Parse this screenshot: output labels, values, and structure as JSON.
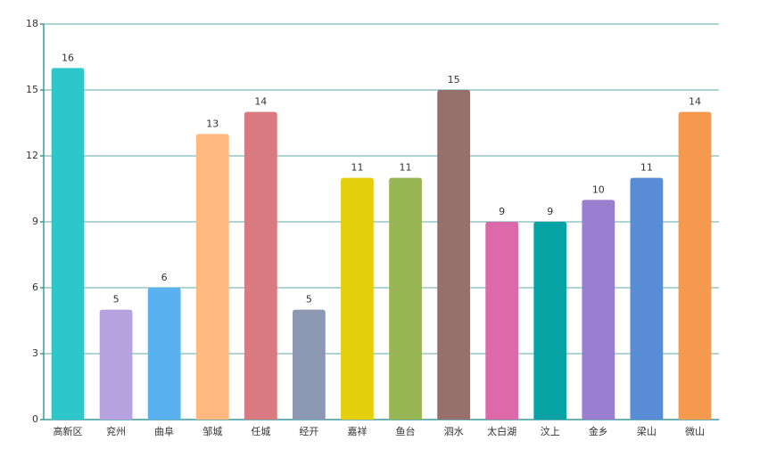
{
  "chart_data": {
    "type": "bar",
    "categories": [
      "高新区",
      "兖州",
      "曲阜",
      "邹城",
      "任城",
      "经开",
      "嘉祥",
      "鱼台",
      "泗水",
      "太白湖",
      "汶上",
      "金乡",
      "梁山",
      "微山"
    ],
    "values": [
      16,
      5,
      6,
      13,
      14,
      5,
      11,
      11,
      15,
      9,
      9,
      10,
      11,
      14
    ],
    "colors": [
      "#2ec7c9",
      "#b6a2de",
      "#5ab1ef",
      "#ffb980",
      "#d87a80",
      "#8d98b3",
      "#e5cf0d",
      "#97b552",
      "#95706d",
      "#dc69aa",
      "#07a2a4",
      "#9a7fd1",
      "#588dd5",
      "#f5994e"
    ],
    "ylim": [
      0,
      18
    ],
    "yticks": [
      0,
      3,
      6,
      9,
      12,
      15,
      18
    ],
    "grid": true
  }
}
